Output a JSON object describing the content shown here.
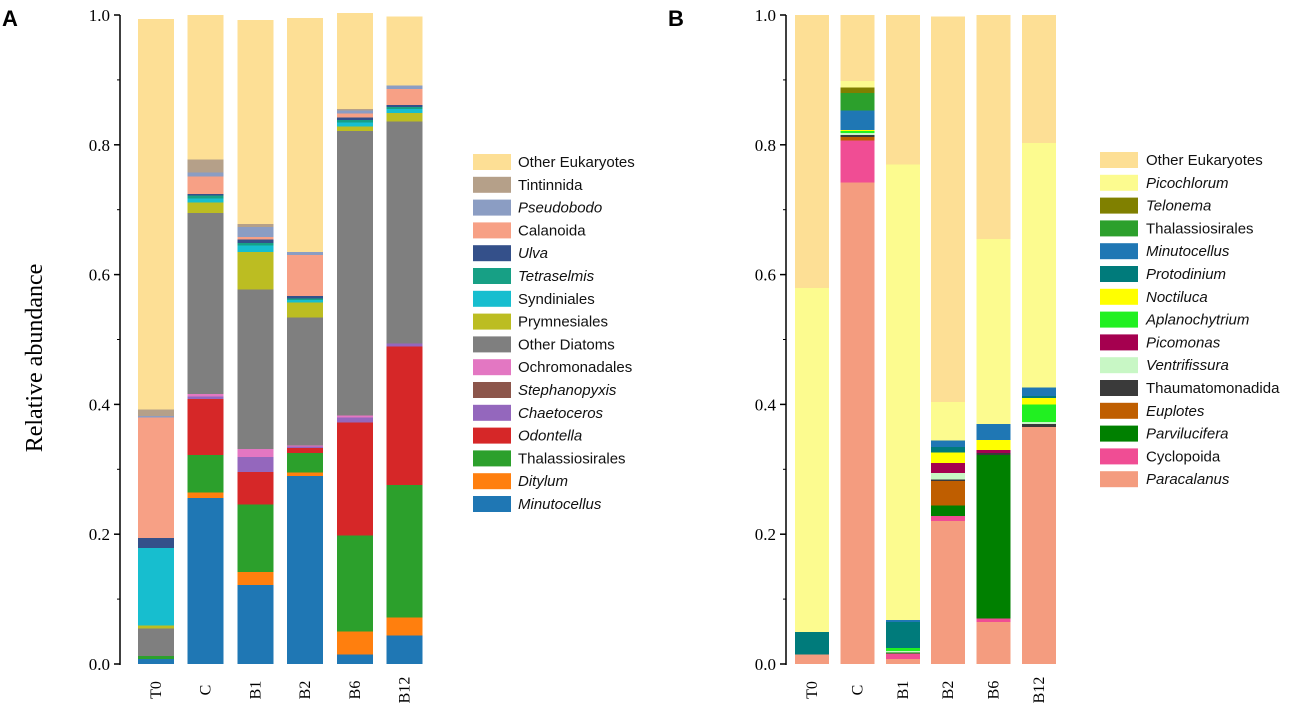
{
  "ylabel": "Relative abundance",
  "chart_data": [
    {
      "panel": "A",
      "type": "bar",
      "stacked": true,
      "ylabel": "Relative abundance",
      "ylim": [
        0,
        1.0
      ],
      "yticks": [
        "0.0",
        "0.2",
        "0.4",
        "0.6",
        "0.8",
        "1.0"
      ],
      "categories": [
        "T0",
        "C",
        "B1",
        "B2",
        "B6",
        "B12"
      ],
      "series": [
        {
          "name": "Minutocellus",
          "italic": true,
          "color": "#1f77b4",
          "values": [
            0.008,
            0.256,
            0.122,
            0.29,
            0.015,
            0.044
          ]
        },
        {
          "name": "Ditylum",
          "italic": true,
          "color": "#ff7f0e",
          "values": [
            0.0,
            0.008,
            0.02,
            0.005,
            0.035,
            0.028
          ]
        },
        {
          "name": "Thalassiosirales",
          "italic": false,
          "color": "#2ca02c",
          "values": [
            0.004,
            0.058,
            0.104,
            0.03,
            0.148,
            0.204
          ]
        },
        {
          "name": "Odontella",
          "italic": true,
          "color": "#d62728",
          "values": [
            0.0,
            0.086,
            0.05,
            0.008,
            0.174,
            0.213
          ]
        },
        {
          "name": "Chaetoceros",
          "italic": true,
          "color": "#9467bd",
          "values": [
            0.0,
            0.004,
            0.023,
            0.002,
            0.008,
            0.005
          ]
        },
        {
          "name": "Stephanopyxis",
          "italic": true,
          "color": "#8c564b",
          "values": [
            0.0,
            0.0,
            0.0,
            0.0,
            0.0,
            0.0
          ]
        },
        {
          "name": "Ochromonadales",
          "italic": false,
          "color": "#e377c2",
          "values": [
            0.0,
            0.004,
            0.012,
            0.002,
            0.003,
            0.0
          ]
        },
        {
          "name": "Other Diatoms",
          "italic": false,
          "color": "#7f7f7f",
          "values": [
            0.043,
            0.279,
            0.246,
            0.197,
            0.438,
            0.342
          ]
        },
        {
          "name": "Prymnesiales",
          "italic": false,
          "color": "#bcbd22",
          "values": [
            0.004,
            0.016,
            0.058,
            0.023,
            0.007,
            0.013
          ]
        },
        {
          "name": "Syndiniales",
          "italic": false,
          "color": "#17becf",
          "values": [
            0.12,
            0.006,
            0.01,
            0.004,
            0.006,
            0.006
          ]
        },
        {
          "name": "Tetraselmis",
          "italic": true,
          "color": "#17a085",
          "values": [
            0.0,
            0.005,
            0.004,
            0.002,
            0.004,
            0.003
          ]
        },
        {
          "name": "Ulva",
          "italic": true,
          "color": "#34508a",
          "values": [
            0.015,
            0.002,
            0.005,
            0.004,
            0.004,
            0.003
          ]
        },
        {
          "name": "Calanoida",
          "italic": false,
          "color": "#f7a085",
          "values": [
            0.186,
            0.027,
            0.004,
            0.063,
            0.006,
            0.025
          ]
        },
        {
          "name": "Pseudobodo",
          "italic": true,
          "color": "#8b9dc3",
          "values": [
            0.002,
            0.006,
            0.015,
            0.005,
            0.005,
            0.005
          ]
        },
        {
          "name": "Tintinnida",
          "italic": false,
          "color": "#b5a089",
          "values": [
            0.01,
            0.02,
            0.005,
            0.0,
            0.002,
            0.0
          ]
        },
        {
          "name": "Other Eukaryotes",
          "italic": false,
          "color": "#fddf95",
          "values": [
            0.602,
            0.223,
            0.314,
            0.36,
            0.148,
            0.107
          ]
        }
      ],
      "legend": [
        "Other Eukaryotes",
        "Tintinnida",
        "Pseudobodo",
        "Calanoida",
        "Ulva",
        "Tetraselmis",
        "Syndiniales",
        "Prymnesiales",
        "Other Diatoms",
        "Ochromonadales",
        "Stephanopyxis",
        "Chaetoceros",
        "Odontella",
        "Thalassiosirales",
        "Ditylum",
        "Minutocellus"
      ]
    },
    {
      "panel": "B",
      "type": "bar",
      "stacked": true,
      "ylim": [
        0,
        1.0
      ],
      "yticks": [
        "0.0",
        "0.2",
        "0.4",
        "0.6",
        "0.8",
        "1.0"
      ],
      "categories": [
        "T0",
        "C",
        "B1",
        "B2",
        "B6",
        "B12"
      ],
      "series": [
        {
          "name": "Paracalanus",
          "italic": true,
          "color": "#f49c7f",
          "values": [
            0.015,
            0.742,
            0.008,
            0.22,
            0.065,
            0.365
          ]
        },
        {
          "name": "Cyclopoida",
          "italic": false,
          "color": "#f04d94",
          "values": [
            0.0,
            0.065,
            0.008,
            0.008,
            0.005,
            0.0
          ]
        },
        {
          "name": "Parvilucifera",
          "italic": true,
          "color": "#008000",
          "values": [
            0.0,
            0.0,
            0.002,
            0.016,
            0.252,
            0.0
          ]
        },
        {
          "name": "Euplotes",
          "italic": true,
          "color": "#bf5e00",
          "values": [
            0.0,
            0.005,
            0.0,
            0.038,
            0.0,
            0.0
          ]
        },
        {
          "name": "Thaumatomonadida",
          "italic": false,
          "color": "#3a3a3a",
          "values": [
            0.0,
            0.003,
            0.0,
            0.002,
            0.003,
            0.005
          ]
        },
        {
          "name": "Ventrifissura",
          "italic": true,
          "color": "#c8f7c5",
          "values": [
            0.0,
            0.003,
            0.002,
            0.01,
            0.0,
            0.003
          ]
        },
        {
          "name": "Picomonas",
          "italic": true,
          "color": "#a5004f",
          "values": [
            0.0,
            0.0,
            0.0,
            0.016,
            0.005,
            0.0
          ]
        },
        {
          "name": "Aplanochytrium",
          "italic": true,
          "color": "#21f021",
          "values": [
            0.0,
            0.003,
            0.005,
            0.0,
            0.0,
            0.027
          ]
        },
        {
          "name": "Noctiluca",
          "italic": true,
          "color": "#ffff00",
          "values": [
            0.0,
            0.002,
            0.0,
            0.016,
            0.015,
            0.01
          ]
        },
        {
          "name": "Protodinium",
          "italic": true,
          "color": "#007b7b",
          "values": [
            0.034,
            0.0,
            0.04,
            0.008,
            0.0,
            0.003
          ]
        },
        {
          "name": "Minutocellus",
          "italic": true,
          "color": "#1f77b4",
          "values": [
            0.0,
            0.03,
            0.003,
            0.01,
            0.025,
            0.013
          ]
        },
        {
          "name": "Thalassiosirales",
          "italic": false,
          "color": "#2ca02c",
          "values": [
            0.0,
            0.027,
            0.0,
            0.0,
            0.0,
            0.0
          ]
        },
        {
          "name": "Telonema",
          "italic": true,
          "color": "#808000",
          "values": [
            0.0,
            0.008,
            0.0,
            0.0,
            0.0,
            0.0
          ]
        },
        {
          "name": "Picochlorum",
          "italic": true,
          "color": "#fcfb8f",
          "values": [
            0.53,
            0.01,
            0.702,
            0.06,
            0.285,
            0.377
          ]
        },
        {
          "name": "Other Eukaryotes",
          "italic": false,
          "color": "#fddf95",
          "values": [
            0.421,
            0.102,
            0.23,
            0.594,
            0.345,
            0.197
          ]
        }
      ],
      "legend": [
        "Other Eukaryotes",
        "Picochlorum",
        "Telonema",
        "Thalassiosirales",
        "Minutocellus",
        "Protodinium",
        "Noctiluca",
        "Aplanochytrium",
        "Picomonas",
        "Ventrifissura",
        "Thaumatomonadida",
        "Euplotes",
        "Parvilucifera",
        "Cyclopoida",
        "Paracalanus"
      ]
    }
  ]
}
